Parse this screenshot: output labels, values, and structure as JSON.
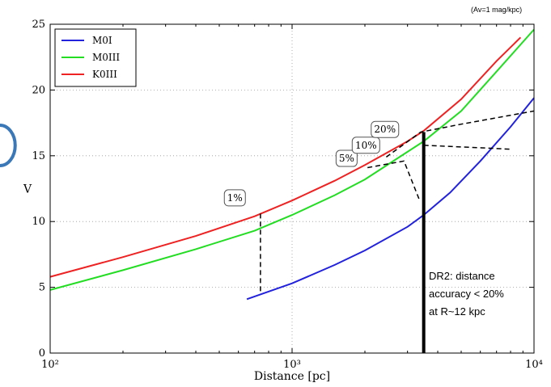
{
  "chart_data": {
    "type": "line",
    "title": "",
    "corner_note": "(Av=1 mag/kpc)",
    "xlabel": "Distance [pc]",
    "ylabel": "V",
    "xscale": "log",
    "xlim": [
      100,
      10000
    ],
    "ylim": [
      0,
      25
    ],
    "x_tick_labels": [
      "10²",
      "10³",
      "10⁴"
    ],
    "x_ticks": [
      100,
      1000,
      10000
    ],
    "y_ticks": [
      0,
      5,
      10,
      15,
      20,
      25
    ],
    "grid": true,
    "legend_position": "top-left",
    "series": [
      {
        "name": "M0I",
        "color": "#2222dd",
        "x": [
          650,
          1000,
          1500,
          2000,
          3000,
          3500,
          4500,
          6000,
          8000,
          10000
        ],
        "y": [
          4.1,
          5.3,
          6.7,
          7.8,
          9.6,
          10.5,
          12.2,
          14.6,
          17.2,
          19.4
        ]
      },
      {
        "name": "M0III",
        "color": "#22dd22",
        "x": [
          100,
          200,
          400,
          700,
          1000,
          1500,
          2000,
          3000,
          3500,
          5000,
          7000,
          10000
        ],
        "y": [
          4.8,
          6.3,
          7.9,
          9.3,
          10.5,
          12.0,
          13.2,
          15.3,
          16.1,
          18.4,
          21.4,
          24.6
        ]
      },
      {
        "name": "K0III",
        "color": "#ee2222",
        "x": [
          100,
          200,
          400,
          700,
          1000,
          1500,
          2000,
          3000,
          3500,
          5000,
          7000,
          8800
        ],
        "y": [
          5.8,
          7.3,
          8.9,
          10.4,
          11.6,
          13.1,
          14.3,
          16.1,
          16.9,
          19.3,
          22.2,
          24.0
        ]
      }
    ],
    "annotations": [
      {
        "label": "1%",
        "x": 580,
        "y": 11.8
      },
      {
        "label": "5%",
        "x": 1680,
        "y": 14.8
      },
      {
        "label": "10%",
        "x": 2020,
        "y": 15.8
      },
      {
        "label": "20%",
        "x": 2420,
        "y": 17.0
      }
    ],
    "dashed_lines": [
      [
        [
          740,
          10.6
        ],
        [
          740,
          4.5
        ]
      ],
      [
        [
          2050,
          14.1
        ],
        [
          2900,
          14.6
        ],
        [
          3350,
          11.7
        ]
      ],
      [
        [
          2450,
          14.9
        ],
        [
          3400,
          16.8
        ],
        [
          5000,
          17.4
        ],
        [
          10000,
          18.4
        ]
      ],
      [
        [
          3500,
          15.8
        ],
        [
          6100,
          15.6
        ],
        [
          8000,
          15.5
        ]
      ]
    ],
    "vertical_marker": {
      "x": 3500,
      "y_from": 0,
      "y_to": 16.8,
      "color": "#000000"
    },
    "note_text": [
      "DR2: distance",
      "accuracy < 20%",
      "at R~12 kpc"
    ]
  }
}
